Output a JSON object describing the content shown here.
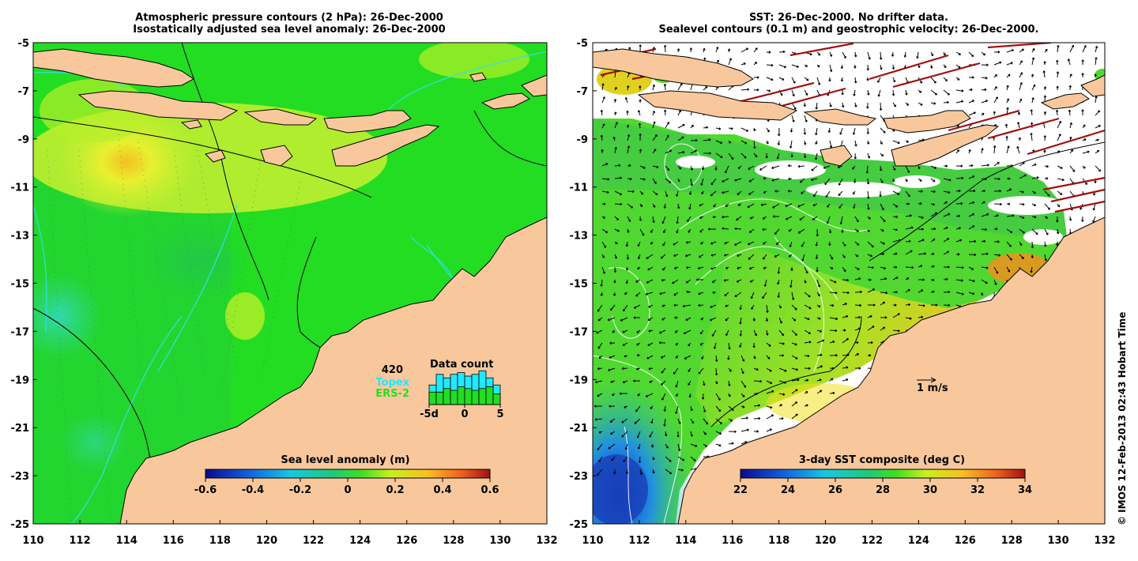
{
  "left_panel": {
    "title_line1": "Atmospheric pressure contours (2 hPa): 26-Dec-2000",
    "title_line2": "Isostatically adjusted sea level anomaly: 26-Dec-2000",
    "colorbar": {
      "title": "Sea level anomaly (m)",
      "ticks": [
        "-0.6",
        "-0.4",
        "-0.2",
        "0",
        "0.2",
        "0.4",
        "0.6"
      ]
    },
    "inset": {
      "count": "420",
      "title": "Data count",
      "topex_label": "Topex",
      "ers2_label": "ERS-2",
      "xticks": [
        "-5d",
        "0",
        "5"
      ],
      "topex_color": "#22e8ff",
      "ers2_color": "#22dd22",
      "histogram_total": [
        0.55,
        0.85,
        0.75,
        0.85,
        0.9,
        0.8,
        0.85,
        0.95,
        0.75,
        0.55
      ],
      "histogram_ers2": [
        0.35,
        0.35,
        0.45,
        0.4,
        0.5,
        0.45,
        0.4,
        0.45,
        0.5,
        0.3
      ]
    }
  },
  "right_panel": {
    "title_line1": "SST: 26-Dec-2000. No drifter data.",
    "title_line2": "Sealevel contours (0.1 m) and geostrophic velocity: 26-Dec-2000.",
    "colorbar": {
      "title": "3-day SST composite (deg C)",
      "ticks": [
        "22",
        "24",
        "26",
        "28",
        "30",
        "32",
        "34"
      ]
    },
    "scale_label": "1 m/s"
  },
  "axes": {
    "y_ticks": [
      "-5",
      "-7",
      "-9",
      "-11",
      "-13",
      "-15",
      "-17",
      "-19",
      "-21",
      "-23",
      "-25"
    ],
    "x_ticks": [
      "110",
      "112",
      "114",
      "116",
      "118",
      "120",
      "122",
      "124",
      "126",
      "128",
      "130",
      "132"
    ],
    "lat_range": [
      -25,
      -5
    ],
    "lon_range": [
      110,
      132
    ]
  },
  "colors": {
    "land": "#f8c89c",
    "ocean_anomaly": "#22dd22",
    "cloud_white": "#ffffff"
  },
  "credit": "© IMOS 12-Feb-2013 02:43 Hobart Time"
}
